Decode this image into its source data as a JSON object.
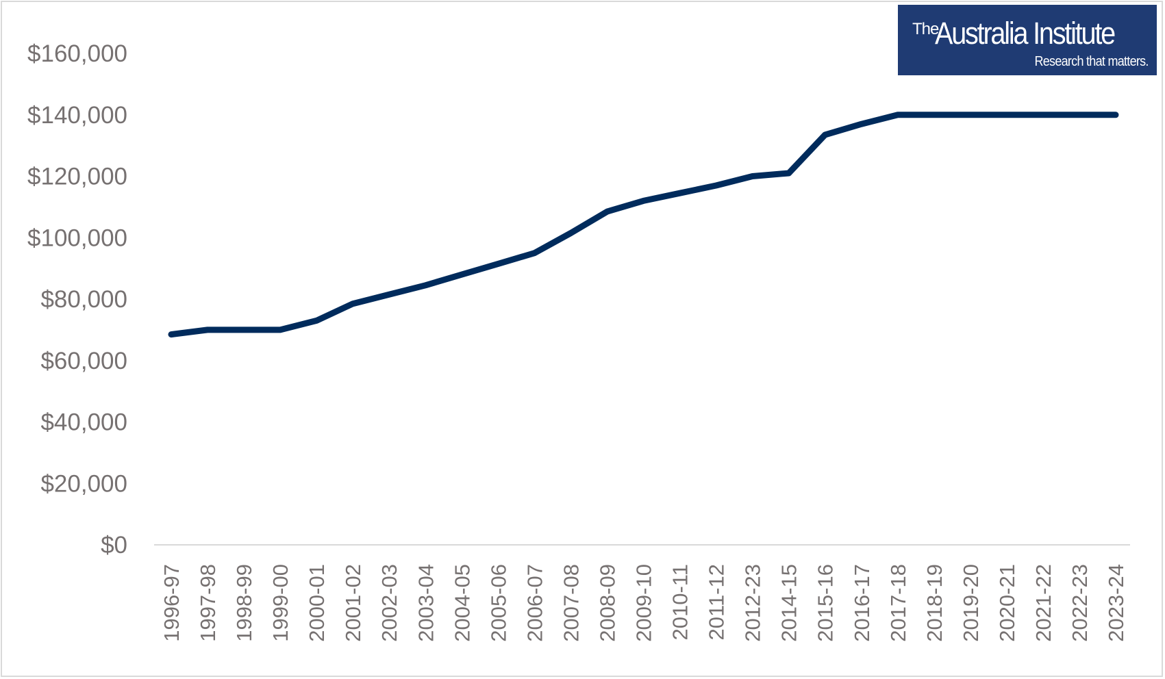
{
  "logo": {
    "the": "The",
    "name": "Australia Institute",
    "tagline": "Research that matters."
  },
  "colors": {
    "line": "#002b5c",
    "axis_text": "#767171",
    "axis_line": "#d9d9d9",
    "logo_bg": "#1f3b73"
  },
  "chart_data": {
    "type": "line",
    "title": "",
    "xlabel": "",
    "ylabel": "",
    "ylim": [
      0,
      170000
    ],
    "y_ticks": [
      0,
      20000,
      40000,
      60000,
      80000,
      100000,
      120000,
      140000,
      160000
    ],
    "y_tick_labels": [
      "$0",
      "$20,000",
      "$40,000",
      "$60,000",
      "$80,000",
      "$100,000",
      "$120,000",
      "$140,000",
      "$160,000"
    ],
    "grid": false,
    "legend": "none",
    "categories": [
      "1996-97",
      "1997-98",
      "1998-99",
      "1999-00",
      "2000-01",
      "2001-02",
      "2002-03",
      "2003-04",
      "2004-05",
      "2005-06",
      "2006-07",
      "2007-08",
      "2008-09",
      "2009-10",
      "2010-11",
      "2011-12",
      "2012-23",
      "2014-15",
      "2015-16",
      "2016-17",
      "2017-18",
      "2018-19",
      "2019-20",
      "2020-21",
      "2021-22",
      "2022-23",
      "2023-24"
    ],
    "series": [
      {
        "values": [
          68500,
          70000,
          70000,
          70000,
          73000,
          78500,
          81500,
          84500,
          88000,
          91500,
          95000,
          101500,
          108500,
          112000,
          114500,
          117000,
          120000,
          121000,
          133500,
          137000,
          140000,
          140000,
          140000,
          140000,
          140000,
          140000,
          140000
        ]
      }
    ]
  }
}
